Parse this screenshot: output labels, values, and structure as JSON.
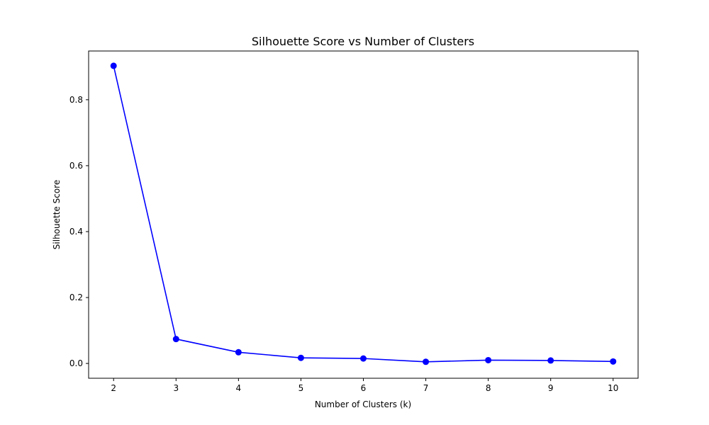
{
  "chart_data": {
    "type": "line",
    "title": "Silhouette Score vs Number of Clusters",
    "xlabel": "Number of Clusters (k)",
    "ylabel": "Silhouette Score",
    "x": [
      2,
      3,
      4,
      5,
      6,
      7,
      8,
      9,
      10
    ],
    "series": [
      {
        "values": [
          0.903,
          0.074,
          0.034,
          0.017,
          0.015,
          0.005,
          0.01,
          0.009,
          0.006
        ],
        "color": "#0000ff",
        "marker": "circle"
      }
    ],
    "xlim": [
      1.6,
      10.4
    ],
    "ylim": [
      -0.0449,
      0.9479
    ],
    "xticks": [
      "2",
      "3",
      "4",
      "5",
      "6",
      "7",
      "8",
      "9",
      "10"
    ],
    "yticks": [
      "0.0",
      "0.2",
      "0.4",
      "0.6",
      "0.8"
    ],
    "grid": false,
    "legend": "none"
  }
}
